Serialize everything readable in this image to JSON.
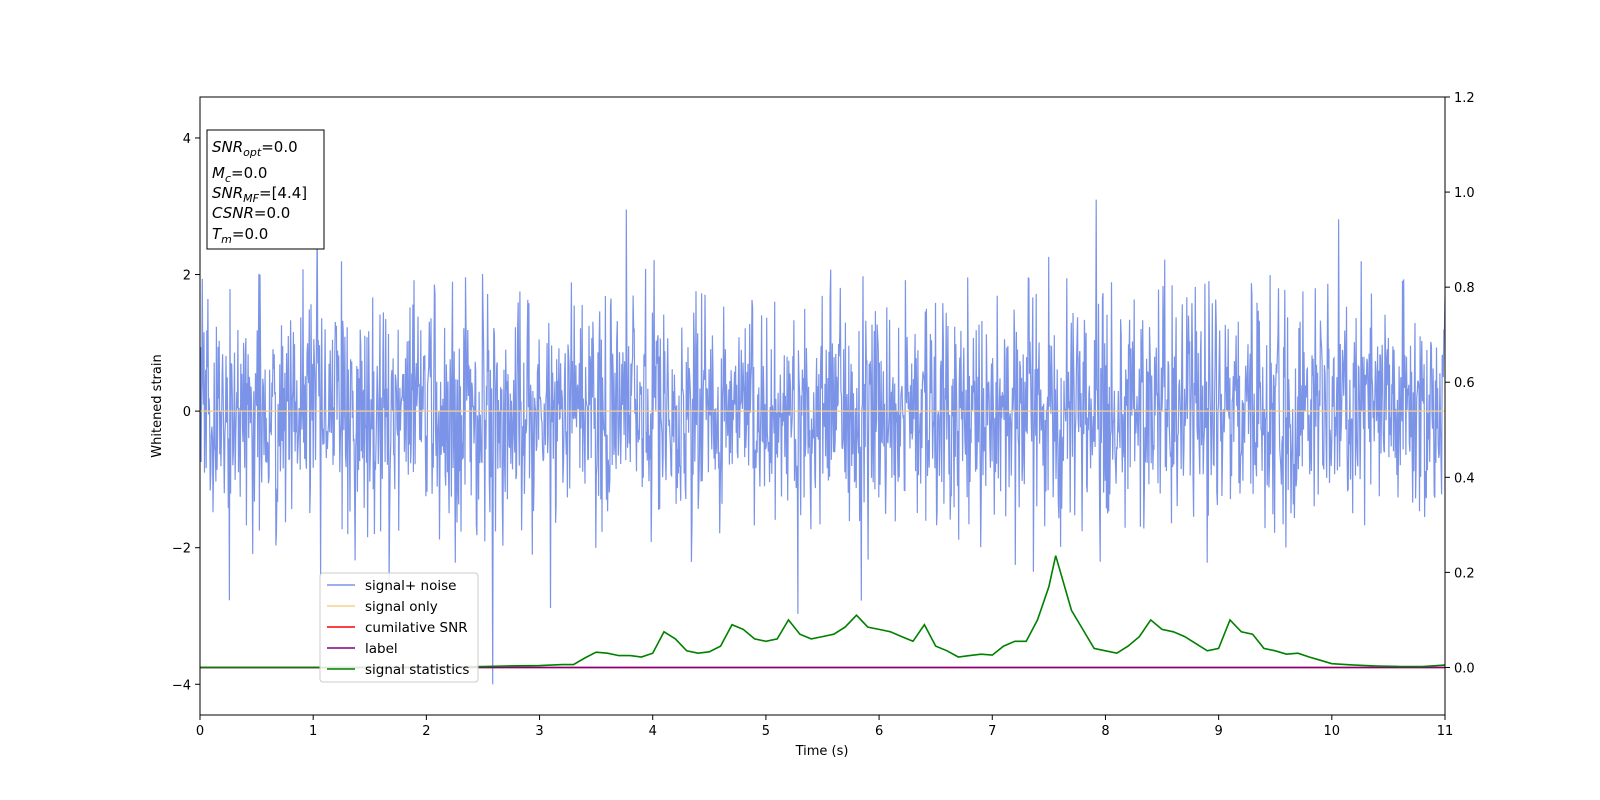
{
  "chart_data": {
    "type": "line",
    "xlabel": "Time (s)",
    "ylabel": "Whitened strain",
    "xlim": [
      0,
      11
    ],
    "ylim": [
      -4.45,
      4.6
    ],
    "y2lim": [
      -0.1,
      1.2
    ],
    "x_ticks": [
      0,
      1,
      2,
      3,
      4,
      5,
      6,
      7,
      8,
      9,
      10,
      11
    ],
    "x_tick_labels": [
      "0",
      "1",
      "2",
      "3",
      "4",
      "5",
      "6",
      "7",
      "8",
      "9",
      "10",
      "11"
    ],
    "y_ticks": [
      -4,
      -2,
      0,
      2,
      4
    ],
    "y_tick_labels": [
      "−4",
      "−2",
      "0",
      "2",
      "4"
    ],
    "y2_ticks": [
      0.0,
      0.2,
      0.4,
      0.6,
      0.8,
      1.0,
      1.2
    ],
    "y2_tick_labels": [
      "0.0",
      "0.2",
      "0.4",
      "0.6",
      "0.8",
      "1.0",
      "1.2"
    ],
    "grid": false,
    "legend_position": "lower-left",
    "colors": {
      "signal_noise": "#7b94e8",
      "signal_only": "#f7d089",
      "cumulative_snr": "#ff0000",
      "label": "#800080",
      "signal_statistics": "#008000"
    },
    "series": [
      {
        "name": "signal+ noise",
        "axis": "left",
        "color": "#7b94e8",
        "description_note": "dense noise",
        "noise_sigma": 0.85,
        "noise_seed": 7,
        "x_range": [
          0,
          11
        ]
      },
      {
        "name": "signal only",
        "axis": "left",
        "color": "#f7d089",
        "x": [
          0,
          11
        ],
        "values": [
          0,
          0
        ]
      },
      {
        "name": "cumilative SNR",
        "axis": "right",
        "color": "#ff0000",
        "x": [
          0,
          11
        ],
        "values": [
          0,
          0
        ]
      },
      {
        "name": "label",
        "axis": "right",
        "color": "#800080",
        "x": [
          0,
          11
        ],
        "values": [
          0,
          0
        ]
      },
      {
        "name": "signal statistics",
        "axis": "right",
        "color": "#008000",
        "x": [
          0,
          0.5,
          1.0,
          1.5,
          2.0,
          2.5,
          2.7,
          3.0,
          3.2,
          3.3,
          3.4,
          3.5,
          3.6,
          3.7,
          3.8,
          3.9,
          4.0,
          4.1,
          4.2,
          4.3,
          4.4,
          4.5,
          4.6,
          4.7,
          4.8,
          4.9,
          5.0,
          5.1,
          5.2,
          5.3,
          5.4,
          5.5,
          5.6,
          5.7,
          5.8,
          5.9,
          6.0,
          6.1,
          6.2,
          6.3,
          6.4,
          6.5,
          6.6,
          6.7,
          6.8,
          6.9,
          7.0,
          7.1,
          7.2,
          7.3,
          7.4,
          7.5,
          7.56,
          7.7,
          7.8,
          7.9,
          8.0,
          8.1,
          8.2,
          8.3,
          8.4,
          8.5,
          8.6,
          8.7,
          8.8,
          8.9,
          9.0,
          9.1,
          9.2,
          9.3,
          9.4,
          9.5,
          9.6,
          9.7,
          9.8,
          9.9,
          10.0,
          10.2,
          10.4,
          10.6,
          10.8,
          11.0
        ],
        "values": [
          0.0,
          0.0,
          0.0,
          0.0,
          0.001,
          0.002,
          0.003,
          0.004,
          0.006,
          0.006,
          0.02,
          0.032,
          0.03,
          0.025,
          0.025,
          0.022,
          0.03,
          0.075,
          0.06,
          0.035,
          0.03,
          0.033,
          0.045,
          0.09,
          0.08,
          0.06,
          0.055,
          0.06,
          0.1,
          0.07,
          0.06,
          0.065,
          0.07,
          0.085,
          0.11,
          0.085,
          0.08,
          0.075,
          0.065,
          0.055,
          0.09,
          0.045,
          0.035,
          0.022,
          0.025,
          0.028,
          0.026,
          0.045,
          0.055,
          0.055,
          0.1,
          0.17,
          0.235,
          0.12,
          0.08,
          0.04,
          0.035,
          0.03,
          0.045,
          0.065,
          0.1,
          0.08,
          0.075,
          0.065,
          0.05,
          0.035,
          0.04,
          0.1,
          0.075,
          0.07,
          0.04,
          0.035,
          0.028,
          0.03,
          0.022,
          0.015,
          0.008,
          0.005,
          0.003,
          0.002,
          0.002,
          0.005
        ]
      }
    ],
    "annotation_box": {
      "lines": [
        {
          "main": "SNR",
          "sub": "opt",
          "value": "=0.0"
        },
        {
          "main": "M",
          "sub": "c",
          "value": "=0.0"
        },
        {
          "main": "SNR",
          "sub": "MF",
          "value": "=[4.4]"
        },
        {
          "main": "CSNR",
          "sub": "",
          "value": "=0.0"
        },
        {
          "main": "T",
          "sub": "m",
          "value": "=0.0"
        }
      ]
    }
  }
}
